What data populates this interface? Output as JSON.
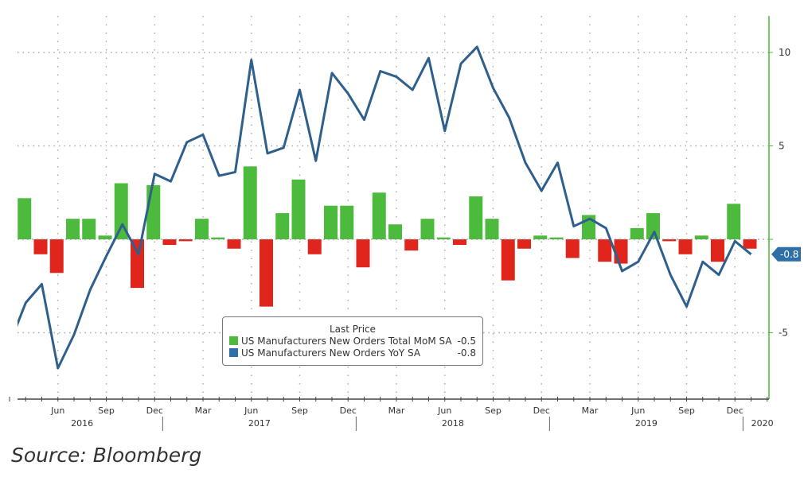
{
  "chart_data": {
    "type": "bar+line",
    "x_start": "Mar 2016",
    "months": [
      "Mar16",
      "Apr16",
      "May16",
      "Jun16",
      "Jul16",
      "Aug16",
      "Sep16",
      "Oct16",
      "Nov16",
      "Dec16",
      "Jan17",
      "Feb17",
      "Mar17",
      "Apr17",
      "May17",
      "Jun17",
      "Jul17",
      "Aug17",
      "Sep17",
      "Oct17",
      "Nov17",
      "Dec17",
      "Jan18",
      "Feb18",
      "Mar18",
      "Apr18",
      "May18",
      "Jun18",
      "Jul18",
      "Aug18",
      "Sep18",
      "Oct18",
      "Nov18",
      "Dec18",
      "Jan19",
      "Feb19",
      "Mar19",
      "Apr19",
      "May19",
      "Jun19",
      "Jul19",
      "Aug19",
      "Sep19",
      "Oct19",
      "Nov19",
      "Dec19",
      "Jan20"
    ],
    "series": [
      {
        "name": "US Manufacturers New Orders Total MoM SA",
        "type": "bar",
        "last": "-0.5",
        "values": [
          null,
          2.2,
          -0.8,
          -1.8,
          1.1,
          1.1,
          0.2,
          3.0,
          -2.6,
          2.9,
          -0.3,
          -0.1,
          1.1,
          0.1,
          -0.5,
          3.9,
          -3.6,
          1.4,
          3.2,
          -0.8,
          1.8,
          1.8,
          -1.5,
          2.5,
          0.8,
          -0.6,
          1.1,
          0.1,
          -0.3,
          2.3,
          1.1,
          -2.2,
          -0.5,
          0.2,
          0.1,
          -1.0,
          1.3,
          -1.2,
          -1.3,
          0.6,
          1.4,
          -0.1,
          -0.8,
          0.2,
          -1.2,
          1.9,
          -0.5
        ]
      },
      {
        "name": "US Manufacturers New Orders YoY SA",
        "type": "line",
        "last": "-0.8",
        "values": [
          -5.6,
          -3.4,
          -2.4,
          -6.9,
          -5.1,
          -2.7,
          -0.9,
          0.8,
          -0.8,
          3.5,
          3.1,
          5.2,
          5.6,
          3.4,
          3.6,
          9.6,
          4.6,
          4.9,
          8.0,
          4.2,
          8.9,
          7.8,
          6.4,
          9.0,
          8.7,
          8.0,
          9.7,
          5.8,
          9.4,
          10.3,
          8.1,
          6.5,
          4.1,
          2.6,
          4.1,
          0.7,
          1.1,
          0.6,
          -1.7,
          -1.2,
          0.4,
          -1.9,
          -3.6,
          -1.2,
          -1.9,
          -0.1,
          -0.8
        ]
      }
    ],
    "colors": {
      "positive": "#4cba3c",
      "negative": "#e0261c",
      "line": "#2f5f8c",
      "axis": "#4cba3c",
      "tag": "#2f6fa8"
    },
    "y_ticks": [
      10,
      5,
      0,
      -5
    ],
    "y_tick_labels": [
      "10",
      "5",
      "0",
      "-5"
    ],
    "ylim": [
      -8.5,
      12.5
    ],
    "x_tick_labels": [
      {
        "label": "Jun",
        "month": 3
      },
      {
        "label": "Sep",
        "month": 6
      },
      {
        "label": "Dec",
        "month": 9
      },
      {
        "label": "Mar",
        "month": 12
      },
      {
        "label": "Jun",
        "month": 15
      },
      {
        "label": "Sep",
        "month": 18
      },
      {
        "label": "Dec",
        "month": 21
      },
      {
        "label": "Mar",
        "month": 24
      },
      {
        "label": "Jun",
        "month": 27
      },
      {
        "label": "Sep",
        "month": 30
      },
      {
        "label": "Dec",
        "month": 33
      },
      {
        "label": "Mar",
        "month": 36
      },
      {
        "label": "Jun",
        "month": 39
      },
      {
        "label": "Sep",
        "month": 42
      },
      {
        "label": "Dec",
        "month": 45
      }
    ],
    "year_labels": [
      {
        "label": "2016",
        "month": 4.5
      },
      {
        "label": "2017",
        "month": 15.5
      },
      {
        "label": "2018",
        "month": 27.5
      },
      {
        "label": "2019",
        "month": 39.5
      },
      {
        "label": "2020",
        "month": 46.7
      }
    ],
    "year_separators": [
      9.5,
      21.5,
      33.5,
      45.5
    ],
    "last_value_tag": "-0.8",
    "legend": {
      "title": "Last Price",
      "placement": "bottom-center"
    },
    "grid": "dotted"
  },
  "source": "Source: Bloomberg"
}
